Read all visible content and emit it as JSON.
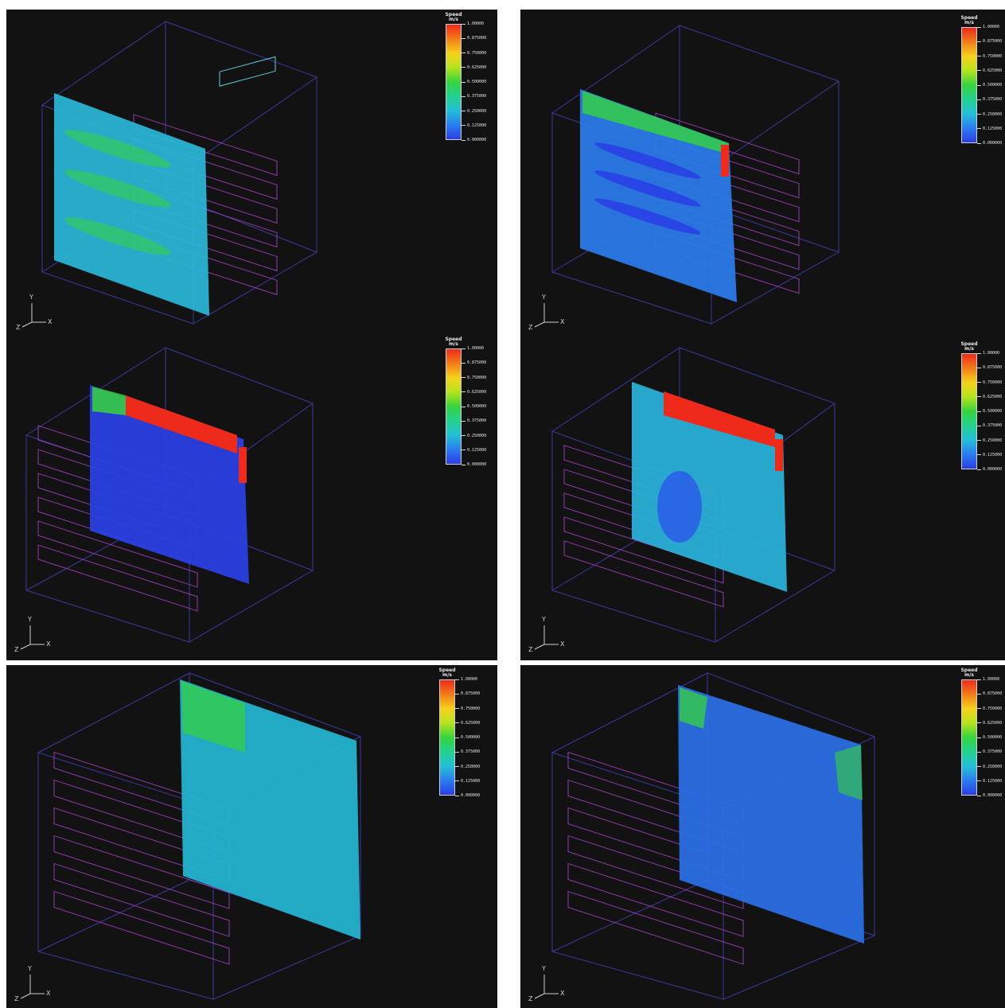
{
  "legend": {
    "title": "Speed",
    "unit": "m/s",
    "ticks": [
      "1.00000",
      "0.875000",
      "0.750000",
      "0.625000",
      "0.500000",
      "0.375000",
      "0.250000",
      "0.125000",
      "0.000000"
    ],
    "colors": [
      "#ee2a1a",
      "#f27a1a",
      "#f5d21a",
      "#b8e41c",
      "#35d43c",
      "#22d28c",
      "#22c0d8",
      "#2a80f0",
      "#2a3de8"
    ]
  },
  "axes": {
    "x": "X",
    "y": "Y",
    "z": "Z"
  },
  "panels": [
    {
      "id": "top-left",
      "slice_color": "#2ab8d8"
    },
    {
      "id": "top-right",
      "slice_color": "#2a7ae8"
    },
    {
      "id": "middle-left",
      "slice_color": "#2a40e0"
    },
    {
      "id": "middle-right",
      "slice_color": "#2ab0d8"
    },
    {
      "id": "bottom-left",
      "slice_color": "#24b6d4"
    },
    {
      "id": "bottom-right",
      "slice_color": "#2a70e8"
    }
  ]
}
